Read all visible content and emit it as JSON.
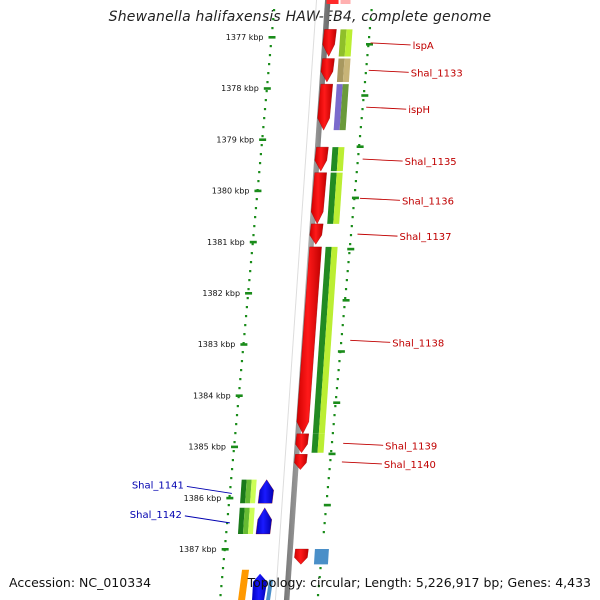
{
  "title": "Shewanella halifaxensis HAW-EB4, complete genome",
  "footer": {
    "accession": "Accession: NC_010334",
    "summary": "Topology: circular; Length: 5,226,917 bp; Genes: 4,433"
  },
  "colors": {
    "cds_forward": "#ff0000",
    "cds_reverse": "#0000ff",
    "ruler_dots": "#1a8c1a",
    "backbone": "#888888",
    "label_forward": "#c00000",
    "label_reverse": "#0000b0"
  },
  "ticks": [
    {
      "kbp": 1377,
      "label": "1377 kbp"
    },
    {
      "kbp": 1378,
      "label": "1378 kbp"
    },
    {
      "kbp": 1379,
      "label": "1379 kbp"
    },
    {
      "kbp": 1380,
      "label": "1380 kbp"
    },
    {
      "kbp": 1381,
      "label": "1381 kbp"
    },
    {
      "kbp": 1382,
      "label": "1382 kbp"
    },
    {
      "kbp": 1383,
      "label": "1383 kbp"
    },
    {
      "kbp": 1384,
      "label": "1384 kbp"
    },
    {
      "kbp": 1385,
      "label": "1385 kbp"
    },
    {
      "kbp": 1386,
      "label": "1386 kbp"
    },
    {
      "kbp": 1387,
      "label": "1387 kbp"
    }
  ],
  "genes_forward": [
    {
      "name": "lspA",
      "start": 1376.85,
      "end": 1377.38,
      "cog": [
        "#8fbf2a",
        "#bbee33"
      ]
    },
    {
      "name": "Shal_1133",
      "start": 1377.42,
      "end": 1377.88,
      "cog": [
        "#a89860",
        "#c8b478"
      ]
    },
    {
      "name": "ispH",
      "start": 1377.92,
      "end": 1378.82,
      "cog": [
        "#7a6acc",
        "#6a9a3a"
      ]
    },
    {
      "name": "Shal_1135",
      "start": 1379.15,
      "end": 1379.62,
      "cog": [
        "#228b22",
        "#bbee33"
      ]
    },
    {
      "name": "Shal_1136",
      "start": 1379.65,
      "end": 1380.65,
      "cog": [
        "#228b22",
        "#bbee33"
      ]
    },
    {
      "name": "Shal_1137",
      "start": 1380.65,
      "end": 1381.05,
      "cog": []
    },
    {
      "name": "Shal_1138",
      "start": 1381.1,
      "end": 1384.75,
      "cog": [
        "#228b22",
        "#bbee33"
      ]
    },
    {
      "name": "Shal_1139",
      "start": 1384.75,
      "end": 1385.12,
      "cog": [
        "#228b22",
        "#bbee33"
      ]
    },
    {
      "name": "Shal_1140",
      "start": 1385.15,
      "end": 1385.45,
      "cog": []
    }
  ],
  "genes_reverse": [
    {
      "name": "Shal_1141",
      "start": 1385.45,
      "end": 1385.95
    },
    {
      "name": "Shal_1142",
      "start": 1386.0,
      "end": 1386.55
    }
  ]
}
